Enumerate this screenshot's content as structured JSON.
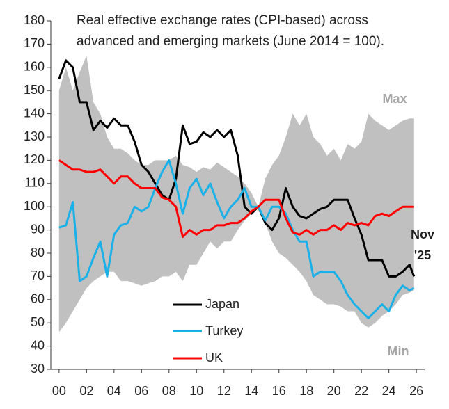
{
  "chart_data": {
    "type": "line",
    "title": [
      "Real effective exchange rates (CPI-based) across",
      "advanced and emerging markets (June 2014 = 100)."
    ],
    "x": [
      2000,
      2000.5,
      2001,
      2001.5,
      2002,
      2002.5,
      2003,
      2003.5,
      2004,
      2004.5,
      2005,
      2005.5,
      2006,
      2006.5,
      2007,
      2007.5,
      2008,
      2008.5,
      2009,
      2009.5,
      2010,
      2010.5,
      2011,
      2011.5,
      2012,
      2012.5,
      2013,
      2013.5,
      2014,
      2014.5,
      2015,
      2015.5,
      2016,
      2016.5,
      2017,
      2017.5,
      2018,
      2018.5,
      2019,
      2019.5,
      2020,
      2020.5,
      2021,
      2021.5,
      2022,
      2022.5,
      2023,
      2023.5,
      2024,
      2024.5,
      2025,
      2025.5,
      2025.83
    ],
    "band": {
      "color": "#c0c0c0",
      "upper_label": "Max",
      "lower_label": "Min",
      "upper": [
        150,
        160,
        150,
        158,
        165,
        145,
        140,
        130,
        125,
        125,
        123,
        120,
        118,
        118,
        120,
        120,
        120,
        122,
        118,
        117,
        115,
        117,
        116,
        119,
        117,
        115,
        113,
        110,
        106,
        100,
        112,
        118,
        122,
        130,
        140,
        135,
        140,
        130,
        127,
        122,
        125,
        120,
        127,
        125,
        128,
        140,
        137,
        135,
        133,
        135,
        137,
        138,
        138
      ],
      "lower": [
        46,
        50,
        55,
        60,
        65,
        68,
        70,
        72,
        72,
        68,
        68,
        67,
        66,
        67,
        68,
        70,
        70,
        72,
        68,
        75,
        75,
        80,
        85,
        82,
        85,
        85,
        90,
        94,
        97,
        100,
        93,
        85,
        80,
        78,
        75,
        72,
        68,
        62,
        60,
        58,
        58,
        57,
        55,
        55,
        50,
        48,
        50,
        53,
        55,
        58,
        62,
        63,
        64
      ]
    },
    "series": [
      {
        "name": "Japan",
        "color": "#000000",
        "values": [
          155,
          163,
          160,
          145,
          145,
          133,
          137,
          134,
          138,
          135,
          135,
          128,
          118,
          115,
          110,
          105,
          103,
          112,
          135,
          127,
          128,
          132,
          130,
          133,
          130,
          133,
          122,
          100,
          97,
          100,
          93,
          90,
          95,
          108,
          100,
          96,
          95,
          97,
          99,
          100,
          103,
          103,
          103,
          95,
          88,
          77,
          77,
          77,
          70,
          70,
          72,
          75,
          70
        ]
      },
      {
        "name": "Turkey",
        "color": "#1ab0e8",
        "values": [
          91,
          92,
          102,
          68,
          70,
          78,
          85,
          70,
          88,
          92,
          93,
          100,
          98,
          100,
          108,
          115,
          120,
          110,
          97,
          108,
          112,
          105,
          110,
          102,
          95,
          100,
          103,
          108,
          100,
          100,
          94,
          100,
          100,
          97,
          90,
          85,
          85,
          70,
          72,
          72,
          72,
          68,
          62,
          58,
          55,
          52,
          55,
          58,
          55,
          62,
          66,
          64,
          65
        ]
      },
      {
        "name": "UK",
        "color": "#ff0000",
        "values": [
          120,
          118,
          116,
          116,
          115,
          115,
          116,
          113,
          110,
          113,
          113,
          110,
          108,
          108,
          108,
          104,
          103,
          100,
          87,
          90,
          88,
          90,
          90,
          92,
          92,
          93,
          93,
          95,
          98,
          100,
          103,
          103,
          103,
          95,
          89,
          88,
          90,
          88,
          90,
          90,
          92,
          90,
          93,
          92,
          93,
          92,
          96,
          97,
          96,
          98,
          100,
          100,
          100
        ]
      }
    ],
    "end_label": [
      "Nov",
      "'25"
    ],
    "xlim": [
      1999.4,
      2026.6
    ],
    "xticks": [
      {
        "value": 2000,
        "label": "00"
      },
      {
        "value": 2002,
        "label": "02"
      },
      {
        "value": 2004,
        "label": "04"
      },
      {
        "value": 2006,
        "label": "06"
      },
      {
        "value": 2008,
        "label": "08"
      },
      {
        "value": 2010,
        "label": "10"
      },
      {
        "value": 2012,
        "label": "12"
      },
      {
        "value": 2014,
        "label": "14"
      },
      {
        "value": 2016,
        "label": "16"
      },
      {
        "value": 2018,
        "label": "18"
      },
      {
        "value": 2020,
        "label": "20"
      },
      {
        "value": 2022,
        "label": "22"
      },
      {
        "value": 2024,
        "label": "24"
      },
      {
        "value": 2026,
        "label": "26"
      }
    ],
    "ylim": [
      30,
      180
    ],
    "yticks": [
      30,
      40,
      50,
      60,
      70,
      80,
      90,
      100,
      110,
      120,
      130,
      140,
      150,
      160,
      170,
      180
    ],
    "grid": false
  }
}
